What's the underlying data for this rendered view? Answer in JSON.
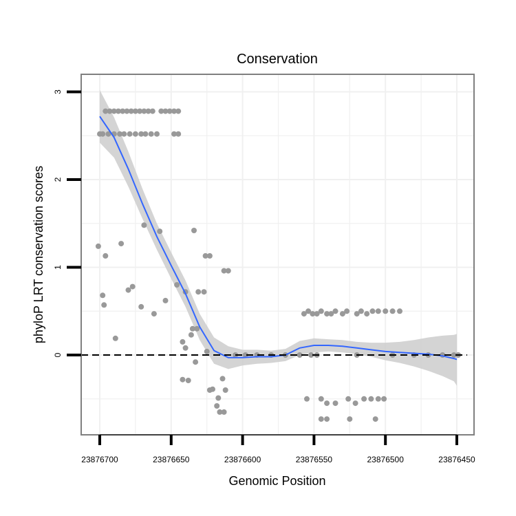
{
  "chart_data": {
    "type": "scatter",
    "title": "Conservation",
    "xlabel": "Genomic Position",
    "ylabel": "phyloP LRT conservation scores",
    "x_reversed": true,
    "xlim": [
      23876450,
      23876700
    ],
    "ylim": [
      -0.9,
      3.2
    ],
    "x_ticks": [
      23876700,
      23876650,
      23876600,
      23876550,
      23876500,
      23876450
    ],
    "x_tick_labels": [
      "23876700",
      "23876650",
      "23876600",
      "23876550",
      "23876500",
      "23876450"
    ],
    "y_ticks": [
      0,
      1,
      2,
      3
    ],
    "y_tick_labels": [
      "0",
      "1",
      "2",
      "3"
    ],
    "grid": true,
    "reference_line": {
      "y": 0,
      "style": "dashed"
    },
    "colors": {
      "points": "#999999",
      "smooth": "#3366ff",
      "band": "#cccccc",
      "grid": "#f0f0f0",
      "frame": "#7f7f7f"
    },
    "series": [
      {
        "name": "scores",
        "points": [
          [
            23876696,
            2.78
          ],
          [
            23876693,
            2.78
          ],
          [
            23876690,
            2.78
          ],
          [
            23876687,
            2.78
          ],
          [
            23876684,
            2.78
          ],
          [
            23876681,
            2.78
          ],
          [
            23876678,
            2.78
          ],
          [
            23876675,
            2.78
          ],
          [
            23876672,
            2.78
          ],
          [
            23876669,
            2.78
          ],
          [
            23876666,
            2.78
          ],
          [
            23876663,
            2.78
          ],
          [
            23876657,
            2.78
          ],
          [
            23876654,
            2.78
          ],
          [
            23876651,
            2.78
          ],
          [
            23876648,
            2.78
          ],
          [
            23876645,
            2.78
          ],
          [
            23876700,
            2.52
          ],
          [
            23876698,
            2.52
          ],
          [
            23876694,
            2.52
          ],
          [
            23876690,
            2.52
          ],
          [
            23876686,
            2.52
          ],
          [
            23876683,
            2.52
          ],
          [
            23876679,
            2.52
          ],
          [
            23876675,
            2.52
          ],
          [
            23876671,
            2.52
          ],
          [
            23876668,
            2.52
          ],
          [
            23876664,
            2.52
          ],
          [
            23876660,
            2.52
          ],
          [
            23876648,
            2.52
          ],
          [
            23876645,
            2.52
          ],
          [
            23876701,
            1.24
          ],
          [
            23876685,
            1.27
          ],
          [
            23876696,
            1.13
          ],
          [
            23876669,
            1.48
          ],
          [
            23876658,
            1.41
          ],
          [
            23876634,
            1.42
          ],
          [
            23876626,
            1.13
          ],
          [
            23876623,
            1.13
          ],
          [
            23876698,
            0.68
          ],
          [
            23876697,
            0.57
          ],
          [
            23876680,
            0.74
          ],
          [
            23876677,
            0.78
          ],
          [
            23876671,
            0.55
          ],
          [
            23876662,
            0.47
          ],
          [
            23876654,
            0.62
          ],
          [
            23876646,
            0.8
          ],
          [
            23876640,
            0.72
          ],
          [
            23876631,
            0.72
          ],
          [
            23876627,
            0.72
          ],
          [
            23876613,
            0.96
          ],
          [
            23876610,
            0.96
          ],
          [
            23876689,
            0.19
          ],
          [
            23876642,
            0.15
          ],
          [
            23876640,
            0.08
          ],
          [
            23876635,
            0.3
          ],
          [
            23876632,
            0.3
          ],
          [
            23876636,
            0.23
          ],
          [
            23876625,
            0.04
          ],
          [
            23876633,
            -0.08
          ],
          [
            23876642,
            -0.28
          ],
          [
            23876638,
            -0.29
          ],
          [
            23876623,
            -0.4
          ],
          [
            23876621,
            -0.39
          ],
          [
            23876614,
            -0.27
          ],
          [
            23876612,
            -0.4
          ],
          [
            23876617,
            -0.49
          ],
          [
            23876618,
            -0.58
          ],
          [
            23876616,
            -0.65
          ],
          [
            23876613,
            -0.65
          ],
          [
            23876605,
            0
          ],
          [
            23876598,
            0
          ],
          [
            23876590,
            0
          ],
          [
            23876580,
            0
          ],
          [
            23876570,
            0
          ],
          [
            23876560,
            0
          ],
          [
            23876552,
            0
          ],
          [
            23876548,
            0
          ],
          [
            23876520,
            0
          ],
          [
            23876495,
            0
          ],
          [
            23876480,
            0
          ],
          [
            23876470,
            0
          ],
          [
            23876460,
            0
          ],
          [
            23876452,
            0
          ],
          [
            23876449,
            0
          ],
          [
            23876557,
            0.47
          ],
          [
            23876554,
            0.5
          ],
          [
            23876551,
            0.47
          ],
          [
            23876548,
            0.47
          ],
          [
            23876545,
            0.5
          ],
          [
            23876541,
            0.47
          ],
          [
            23876538,
            0.47
          ],
          [
            23876535,
            0.5
          ],
          [
            23876530,
            0.47
          ],
          [
            23876527,
            0.5
          ],
          [
            23876520,
            0.47
          ],
          [
            23876517,
            0.5
          ],
          [
            23876513,
            0.47
          ],
          [
            23876509,
            0.5
          ],
          [
            23876505,
            0.5
          ],
          [
            23876500,
            0.5
          ],
          [
            23876495,
            0.5
          ],
          [
            23876490,
            0.5
          ],
          [
            23876555,
            -0.5
          ],
          [
            23876545,
            -0.5
          ],
          [
            23876541,
            -0.55
          ],
          [
            23876535,
            -0.55
          ],
          [
            23876526,
            -0.5
          ],
          [
            23876521,
            -0.55
          ],
          [
            23876515,
            -0.5
          ],
          [
            23876510,
            -0.5
          ],
          [
            23876505,
            -0.5
          ],
          [
            23876501,
            -0.5
          ],
          [
            23876545,
            -0.73
          ],
          [
            23876541,
            -0.73
          ],
          [
            23876525,
            -0.73
          ],
          [
            23876507,
            -0.73
          ]
        ]
      },
      {
        "name": "loess fit",
        "curve": [
          [
            23876700,
            2.72
          ],
          [
            23876690,
            2.48
          ],
          [
            23876680,
            2.12
          ],
          [
            23876670,
            1.72
          ],
          [
            23876660,
            1.35
          ],
          [
            23876650,
            1.02
          ],
          [
            23876640,
            0.7
          ],
          [
            23876630,
            0.32
          ],
          [
            23876620,
            0.05
          ],
          [
            23876610,
            -0.03
          ],
          [
            23876600,
            -0.03
          ],
          [
            23876590,
            -0.02
          ],
          [
            23876580,
            -0.02
          ],
          [
            23876570,
            0.0
          ],
          [
            23876560,
            0.08
          ],
          [
            23876550,
            0.11
          ],
          [
            23876540,
            0.11
          ],
          [
            23876530,
            0.1
          ],
          [
            23876520,
            0.08
          ],
          [
            23876510,
            0.06
          ],
          [
            23876500,
            0.04
          ],
          [
            23876490,
            0.03
          ],
          [
            23876480,
            0.02
          ],
          [
            23876470,
            0.01
          ],
          [
            23876460,
            -0.01
          ],
          [
            23876452,
            -0.04
          ],
          [
            23876450,
            -0.05
          ]
        ],
        "band_lower": [
          [
            23876700,
            2.42
          ],
          [
            23876690,
            2.25
          ],
          [
            23876680,
            1.92
          ],
          [
            23876670,
            1.55
          ],
          [
            23876660,
            1.2
          ],
          [
            23876650,
            0.87
          ],
          [
            23876640,
            0.55
          ],
          [
            23876630,
            0.17
          ],
          [
            23876620,
            -0.1
          ],
          [
            23876610,
            -0.16
          ],
          [
            23876600,
            -0.12
          ],
          [
            23876590,
            -0.1
          ],
          [
            23876580,
            -0.09
          ],
          [
            23876570,
            -0.07
          ],
          [
            23876560,
            -0.0
          ],
          [
            23876550,
            0.03
          ],
          [
            23876540,
            0.04
          ],
          [
            23876530,
            0.03
          ],
          [
            23876520,
            0.01
          ],
          [
            23876510,
            -0.02
          ],
          [
            23876500,
            -0.06
          ],
          [
            23876490,
            -0.09
          ],
          [
            23876480,
            -0.13
          ],
          [
            23876470,
            -0.18
          ],
          [
            23876460,
            -0.24
          ],
          [
            23876452,
            -0.3
          ],
          [
            23876450,
            -0.35
          ]
        ],
        "band_upper": [
          [
            23876700,
            3.02
          ],
          [
            23876690,
            2.71
          ],
          [
            23876680,
            2.32
          ],
          [
            23876670,
            1.89
          ],
          [
            23876660,
            1.5
          ],
          [
            23876650,
            1.17
          ],
          [
            23876640,
            0.85
          ],
          [
            23876630,
            0.47
          ],
          [
            23876620,
            0.2
          ],
          [
            23876610,
            0.1
          ],
          [
            23876600,
            0.06
          ],
          [
            23876590,
            0.06
          ],
          [
            23876580,
            0.05
          ],
          [
            23876570,
            0.07
          ],
          [
            23876560,
            0.16
          ],
          [
            23876550,
            0.19
          ],
          [
            23876540,
            0.18
          ],
          [
            23876530,
            0.17
          ],
          [
            23876520,
            0.15
          ],
          [
            23876510,
            0.14
          ],
          [
            23876500,
            0.14
          ],
          [
            23876490,
            0.15
          ],
          [
            23876480,
            0.17
          ],
          [
            23876470,
            0.2
          ],
          [
            23876460,
            0.22
          ],
          [
            23876452,
            0.23
          ],
          [
            23876450,
            0.24
          ]
        ]
      }
    ]
  }
}
